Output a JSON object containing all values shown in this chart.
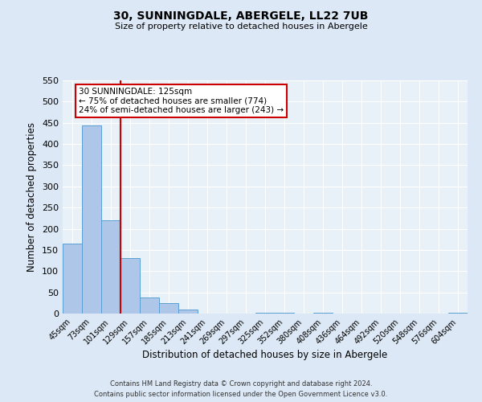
{
  "title": "30, SUNNINGDALE, ABERGELE, LL22 7UB",
  "subtitle": "Size of property relative to detached houses in Abergele",
  "xlabel": "Distribution of detached houses by size in Abergele",
  "ylabel": "Number of detached properties",
  "bar_labels": [
    "45sqm",
    "73sqm",
    "101sqm",
    "129sqm",
    "157sqm",
    "185sqm",
    "213sqm",
    "241sqm",
    "269sqm",
    "297sqm",
    "325sqm",
    "352sqm",
    "380sqm",
    "408sqm",
    "436sqm",
    "464sqm",
    "492sqm",
    "520sqm",
    "548sqm",
    "576sqm",
    "604sqm"
  ],
  "bar_values": [
    165,
    443,
    220,
    130,
    37,
    25,
    10,
    0,
    0,
    0,
    2,
    1,
    0,
    1,
    0,
    0,
    0,
    0,
    0,
    0,
    2
  ],
  "bar_color": "#aec6e8",
  "bar_edgecolor": "#5a9fd4",
  "vline_x_index": 3,
  "vline_color": "#cc0000",
  "annotation_title": "30 SUNNINGDALE: 125sqm",
  "annotation_line1": "← 75% of detached houses are smaller (774)",
  "annotation_line2": "24% of semi-detached houses are larger (243) →",
  "annotation_box_edgecolor": "#cc0000",
  "ylim": [
    0,
    550
  ],
  "yticks": [
    0,
    50,
    100,
    150,
    200,
    250,
    300,
    350,
    400,
    450,
    500,
    550
  ],
  "footer_line1": "Contains HM Land Registry data © Crown copyright and database right 2024.",
  "footer_line2": "Contains public sector information licensed under the Open Government Licence v3.0.",
  "bg_color": "#dce8f5",
  "plot_bg_color": "#e8f0f8"
}
